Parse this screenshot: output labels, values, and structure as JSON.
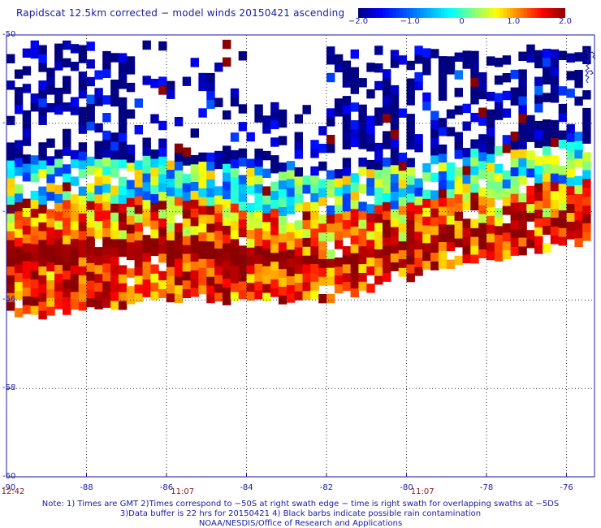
{
  "title": "Rapidscat 12.5km corrected − model winds 20150421 ascending",
  "colorbar": {
    "min": -2.0,
    "max": 2.0,
    "ticks": [
      {
        "value": -2.0,
        "label": "−2.0"
      },
      {
        "value": -1.0,
        "label": "−1.0"
      },
      {
        "value": 0,
        "label": "0"
      },
      {
        "value": 1.0,
        "label": "1.0"
      },
      {
        "value": 2.0,
        "label": "2.0"
      }
    ],
    "colors": [
      "#000080",
      "#0000ff",
      "#0050ff",
      "#00a8ff",
      "#00ffff",
      "#80ff80",
      "#ffff00",
      "#ff8000",
      "#ff0000",
      "#8b0000"
    ]
  },
  "chart_data": {
    "type": "heatmap",
    "variable": "wind speed difference (corrected − model)",
    "x_range": [
      -90,
      -75.3
    ],
    "y_range": [
      -60,
      -50
    ],
    "x_ticks": [
      -90,
      -88,
      -86,
      -84,
      -82,
      -80,
      -78,
      -76
    ],
    "x_tick_labels": [
      "-90",
      "-88",
      "-86",
      "-84",
      "-82",
      "-80",
      "-78",
      "-76"
    ],
    "y_ticks": [
      -50,
      -52,
      -54,
      -56,
      -58,
      -60
    ],
    "y_tick_labels": [
      "-50",
      "-52",
      "-54",
      "-56",
      "-58",
      "-60"
    ],
    "grid": "dotted",
    "swath": {
      "cell_deg": 0.2,
      "lon_min": -89.9,
      "lon_max": -75.4,
      "northern_edge_note": "scattered coverage above about -53 near -90 to -84 and above -51.5 east of -82",
      "band_lat_at_lon": [
        {
          "lon": -90.0,
          "lat": -54.3
        },
        {
          "lon": -86.0,
          "lat": -54.2
        },
        {
          "lon": -84.0,
          "lat": -54.4
        },
        {
          "lon": -82.0,
          "lat": -54.6
        },
        {
          "lon": -80.0,
          "lat": -54.3
        },
        {
          "lon": -78.0,
          "lat": -54.0
        },
        {
          "lon": -75.4,
          "lat": -53.8
        }
      ]
    },
    "time_labels": [
      {
        "lon": -90.0,
        "label": "12:42"
      },
      {
        "lon": -85.6,
        "label": "11:07"
      },
      {
        "lon": -79.6,
        "label": "11:07"
      }
    ]
  },
  "notes": [
    "Note: 1) Times are GMT 2)Times correspond to −50S at right swath edge − time is right swath for overlapping swaths at −5DS",
    "3)Data buffer is 22 hrs for 20150421 4) Black barbs indicate possible rain contamination",
    "NOAA/NESDIS/Office of Research and Applications"
  ]
}
